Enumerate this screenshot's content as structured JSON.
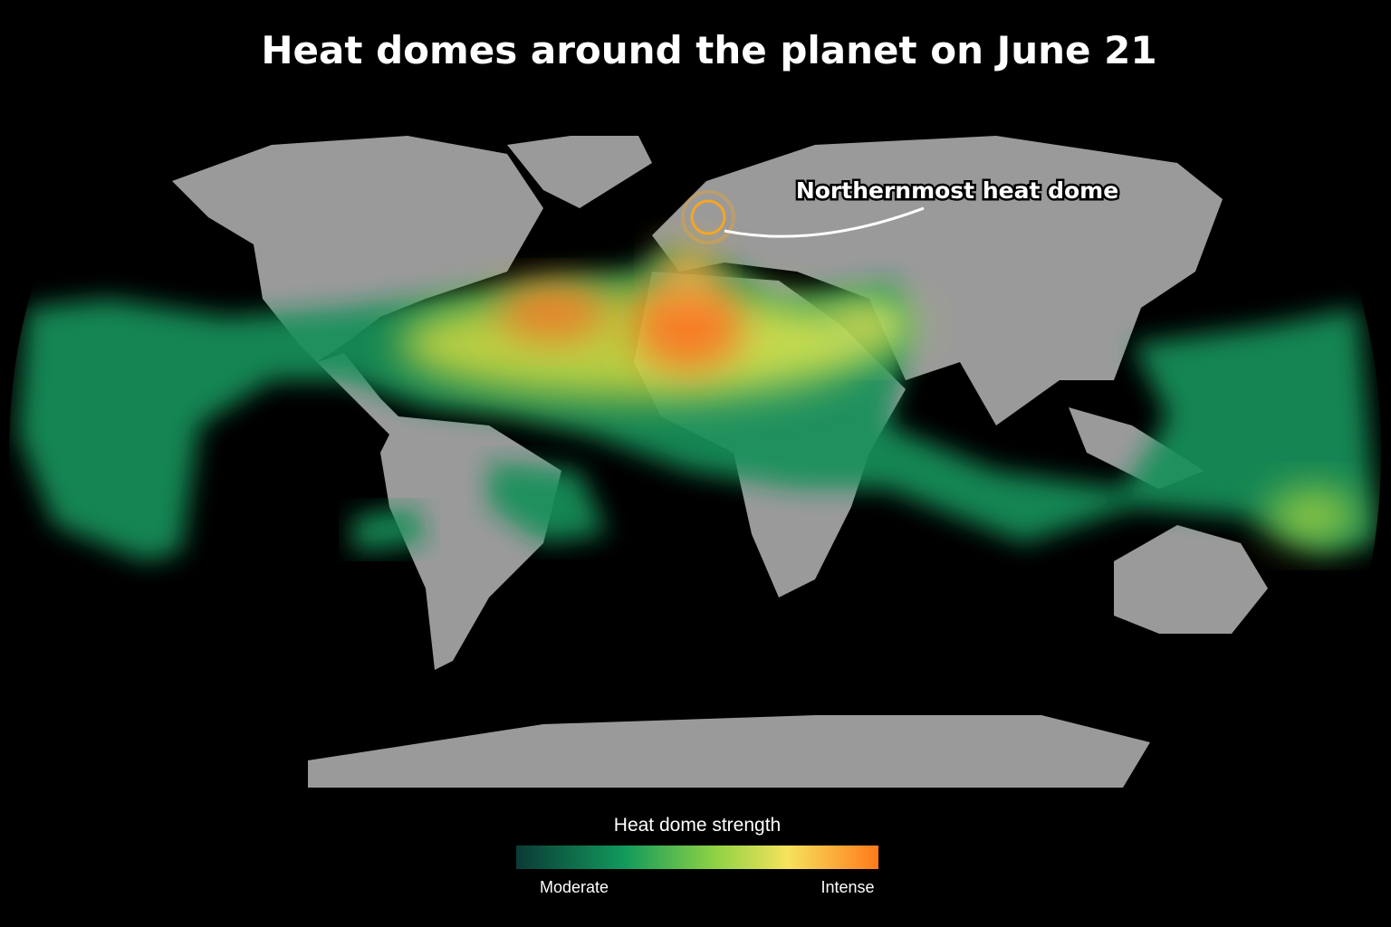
{
  "title": "Heat domes around the planet on June 21",
  "annotation": "Northernmost heat dome",
  "legend": {
    "title": "Heat dome strength",
    "low_label": "Moderate",
    "high_label": "Intense"
  }
}
